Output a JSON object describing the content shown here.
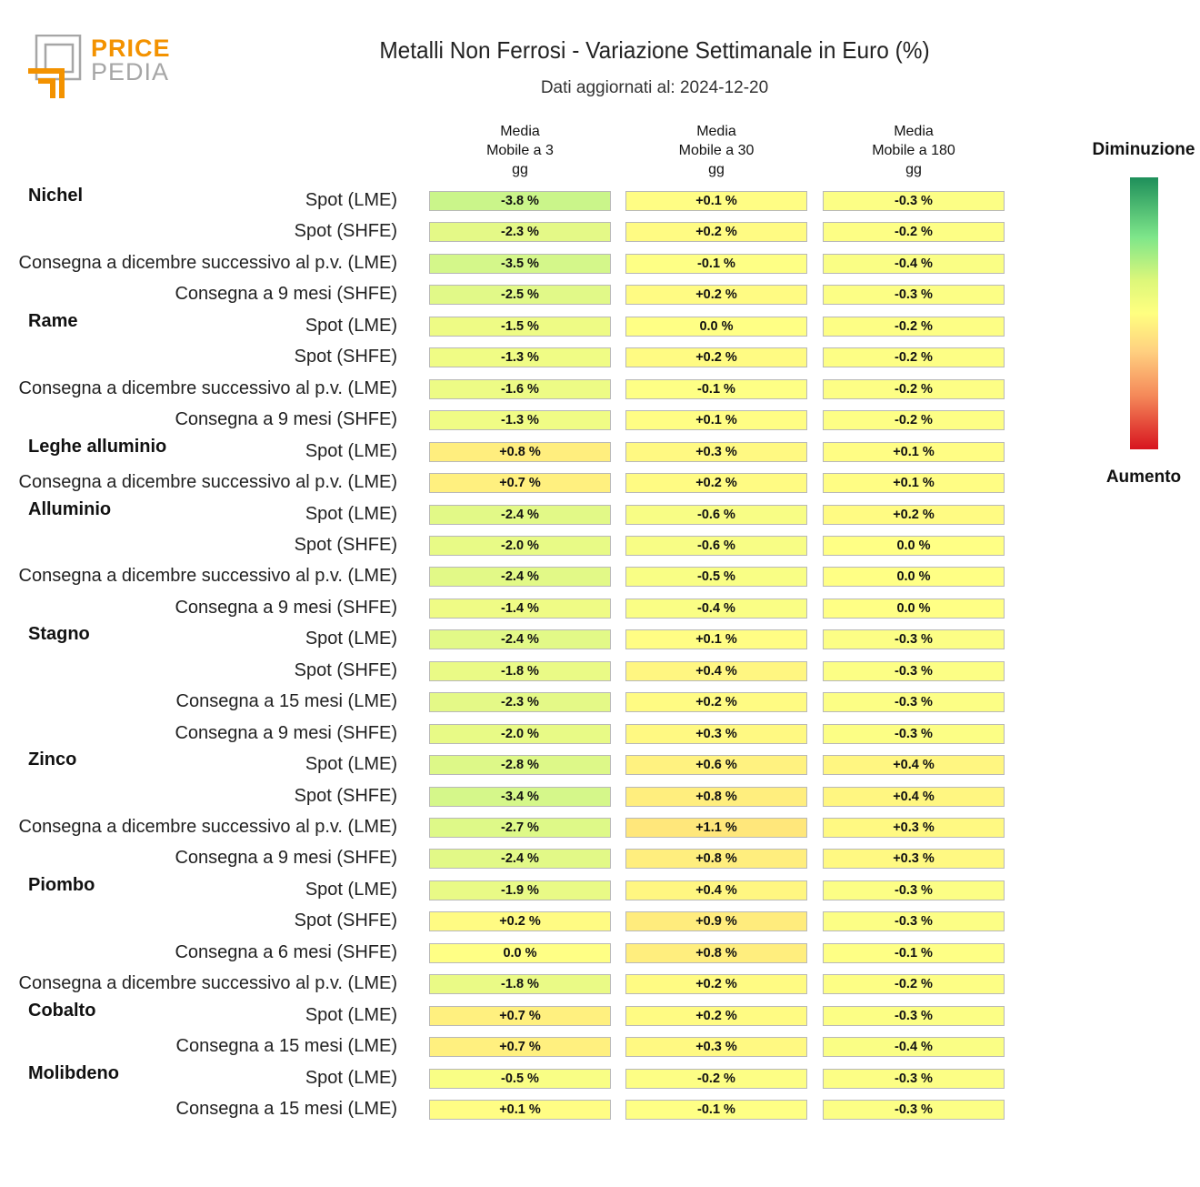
{
  "logo": {
    "line1": "PRICE",
    "line2": "PEDIA",
    "color_orange": "#f39200",
    "color_gray": "#a6a6a6"
  },
  "header": {
    "title": "Metalli Non Ferrosi - Variazione Settimanale in Euro (%)",
    "subtitle": "Dati aggiornati al: 2024-12-20"
  },
  "legend": {
    "top": "Diminuzione",
    "bottom": "Aumento"
  },
  "chart_data": {
    "type": "table",
    "columns": [
      [
        "Media",
        "Mobile a 3",
        "gg"
      ],
      [
        "Media",
        "Mobile a 30",
        "gg"
      ],
      [
        "Media",
        "Mobile a 180",
        "gg"
      ]
    ],
    "rows": [
      {
        "group": "Nichel",
        "label": "Spot (LME)",
        "values": [
          -3.8,
          0.1,
          -0.3
        ]
      },
      {
        "group": "",
        "label": "Spot (SHFE)",
        "values": [
          -2.3,
          0.2,
          -0.2
        ]
      },
      {
        "group": "",
        "label": "Consegna a dicembre successivo al p.v. (LME)",
        "values": [
          -3.5,
          -0.1,
          -0.4
        ]
      },
      {
        "group": "",
        "label": "Consegna a 9 mesi (SHFE)",
        "values": [
          -2.5,
          0.2,
          -0.3
        ]
      },
      {
        "group": "Rame",
        "label": "Spot (LME)",
        "values": [
          -1.5,
          0.0,
          -0.2
        ]
      },
      {
        "group": "",
        "label": "Spot (SHFE)",
        "values": [
          -1.3,
          0.2,
          -0.2
        ]
      },
      {
        "group": "",
        "label": "Consegna a dicembre successivo al p.v. (LME)",
        "values": [
          -1.6,
          -0.1,
          -0.2
        ]
      },
      {
        "group": "",
        "label": "Consegna a 9 mesi (SHFE)",
        "values": [
          -1.3,
          0.1,
          -0.2
        ]
      },
      {
        "group": "Leghe alluminio",
        "label": "Spot (LME)",
        "values": [
          0.8,
          0.3,
          0.1
        ]
      },
      {
        "group": "",
        "label": "Consegna a dicembre successivo al p.v. (LME)",
        "values": [
          0.7,
          0.2,
          0.1
        ]
      },
      {
        "group": "Alluminio",
        "label": "Spot (LME)",
        "values": [
          -2.4,
          -0.6,
          0.2
        ]
      },
      {
        "group": "",
        "label": "Spot (SHFE)",
        "values": [
          -2.0,
          -0.6,
          0.0
        ]
      },
      {
        "group": "",
        "label": "Consegna a dicembre successivo al p.v. (LME)",
        "values": [
          -2.4,
          -0.5,
          0.0
        ]
      },
      {
        "group": "",
        "label": "Consegna a 9 mesi (SHFE)",
        "values": [
          -1.4,
          -0.4,
          0.0
        ]
      },
      {
        "group": "Stagno",
        "label": "Spot (LME)",
        "values": [
          -2.4,
          0.1,
          -0.3
        ]
      },
      {
        "group": "",
        "label": "Spot (SHFE)",
        "values": [
          -1.8,
          0.4,
          -0.3
        ]
      },
      {
        "group": "",
        "label": "Consegna a 15 mesi (LME)",
        "values": [
          -2.3,
          0.2,
          -0.3
        ]
      },
      {
        "group": "",
        "label": "Consegna a 9 mesi (SHFE)",
        "values": [
          -2.0,
          0.3,
          -0.3
        ]
      },
      {
        "group": "Zinco",
        "label": "Spot (LME)",
        "values": [
          -2.8,
          0.6,
          0.4
        ]
      },
      {
        "group": "",
        "label": "Spot (SHFE)",
        "values": [
          -3.4,
          0.8,
          0.4
        ]
      },
      {
        "group": "",
        "label": "Consegna a dicembre successivo al p.v. (LME)",
        "values": [
          -2.7,
          1.1,
          0.3
        ]
      },
      {
        "group": "",
        "label": "Consegna a 9 mesi (SHFE)",
        "values": [
          -2.4,
          0.8,
          0.3
        ]
      },
      {
        "group": "Piombo",
        "label": "Spot (LME)",
        "values": [
          -1.9,
          0.4,
          -0.3
        ]
      },
      {
        "group": "",
        "label": "Spot (SHFE)",
        "values": [
          0.2,
          0.9,
          -0.3
        ]
      },
      {
        "group": "",
        "label": "Consegna a 6 mesi (SHFE)",
        "values": [
          0.0,
          0.8,
          -0.1
        ]
      },
      {
        "group": "",
        "label": "Consegna a dicembre successivo al p.v. (LME)",
        "values": [
          -1.8,
          0.2,
          -0.2
        ]
      },
      {
        "group": "Cobalto",
        "label": "Spot (LME)",
        "values": [
          0.7,
          0.2,
          -0.3
        ]
      },
      {
        "group": "",
        "label": "Consegna a 15 mesi (LME)",
        "values": [
          0.7,
          0.3,
          -0.4
        ]
      },
      {
        "group": "Molibdeno",
        "label": "Spot (LME)",
        "values": [
          -0.5,
          -0.2,
          -0.3
        ]
      },
      {
        "group": "",
        "label": "Consegna a 15 mesi (LME)",
        "values": [
          0.1,
          -0.1,
          -0.3
        ]
      }
    ],
    "value_format": "signed one decimal followed by %",
    "colorscale": [
      "#1e8f5a",
      "#7ee68a",
      "#ddf77a",
      "#ffff80",
      "#ffd080",
      "#f58a5a",
      "#d7141f"
    ]
  }
}
